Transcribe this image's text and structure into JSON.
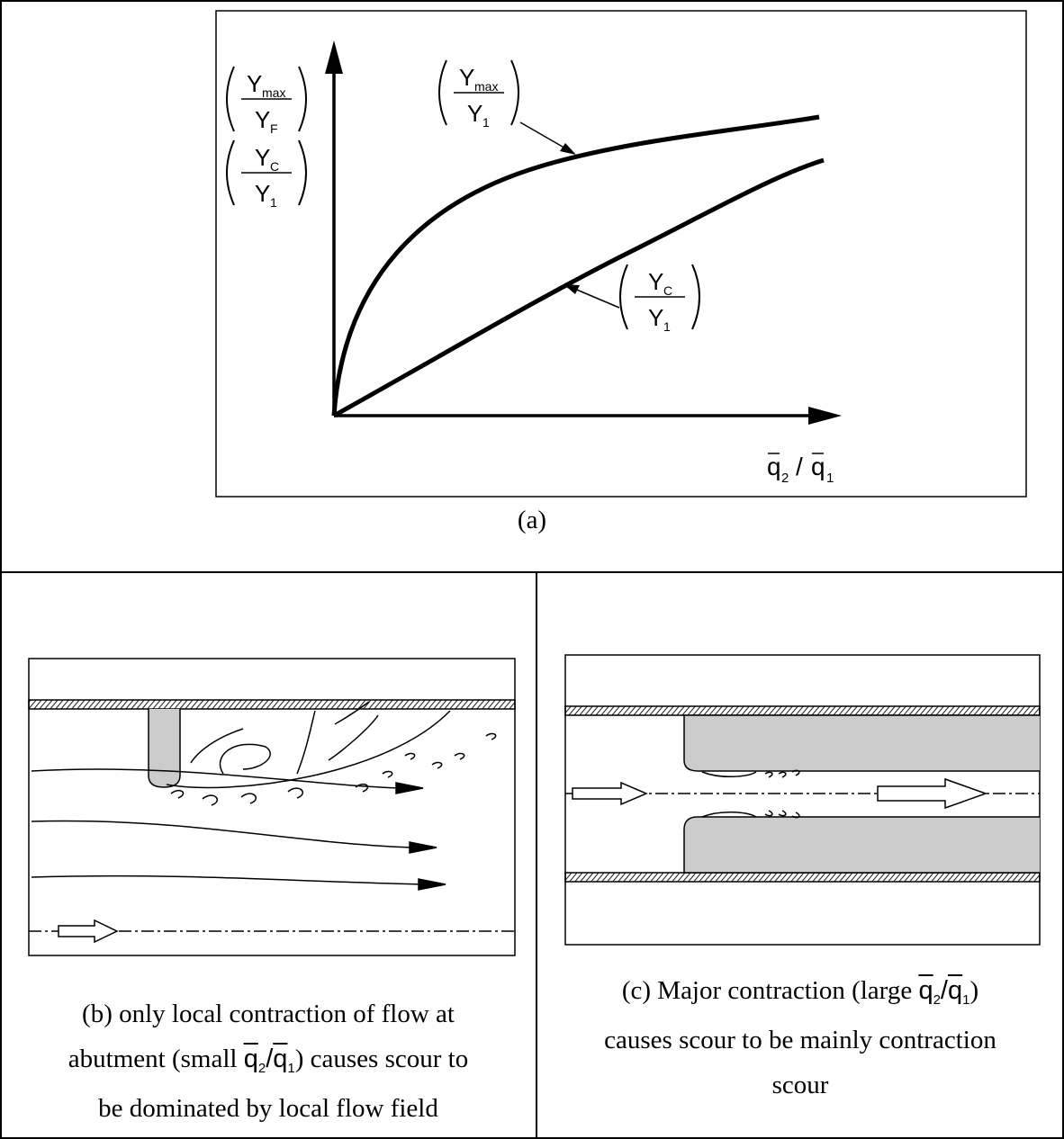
{
  "panel_a": {
    "y_axis_labels": [
      {
        "numerator": "Y",
        "numerator_sub": "max",
        "denominator": "Y",
        "denominator_sub": "F"
      },
      {
        "numerator": "Y",
        "numerator_sub": "C",
        "denominator": "Y",
        "denominator_sub": "1"
      }
    ],
    "curve_labels": [
      {
        "numerator": "Y",
        "numerator_sub": "max",
        "denominator": "Y",
        "denominator_sub": "1"
      },
      {
        "numerator": "Y",
        "numerator_sub": "C",
        "denominator": "Y",
        "denominator_sub": "1"
      }
    ],
    "x_axis_label": {
      "numerator": "q",
      "numerator_sub": "2",
      "separator": "/",
      "denominator": "q",
      "denominator_sub": "1"
    },
    "caption": "(a)"
  },
  "panel_b": {
    "caption": [
      [
        "(b) only local contraction of flow at"
      ],
      [
        "abutment (small ",
        {
          "numerator": "q",
          "numerator_sub": "2",
          "separator": "/",
          "denominator": "q",
          "denominator_sub": "1"
        },
        ") causes scour to"
      ],
      [
        "be dominated by local flow field"
      ]
    ]
  },
  "panel_c": {
    "caption": [
      [
        "(c) Major contraction (large ",
        {
          "numerator": "q",
          "numerator_sub": "2",
          "separator": "/",
          "denominator": "q",
          "denominator_sub": "1"
        },
        ")"
      ],
      [
        "causes scour to be mainly contraction"
      ],
      [
        "scour"
      ]
    ]
  }
}
